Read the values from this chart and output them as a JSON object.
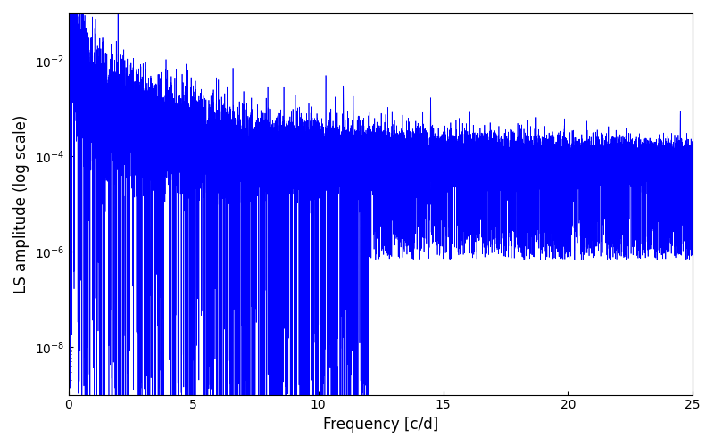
{
  "xlabel": "Frequency [c/d]",
  "ylabel": "LS amplitude (log scale)",
  "xlim": [
    0,
    25
  ],
  "ylim": [
    1e-09,
    0.1
  ],
  "line_color": "#0000ff",
  "line_width": 0.5,
  "num_points": 25000,
  "freq_max": 25.0,
  "seed": 77,
  "background_color": "#ffffff",
  "figsize": [
    8.0,
    5.0
  ],
  "dpi": 100,
  "yticks": [
    1e-08,
    1e-06,
    0.0001,
    0.01
  ]
}
